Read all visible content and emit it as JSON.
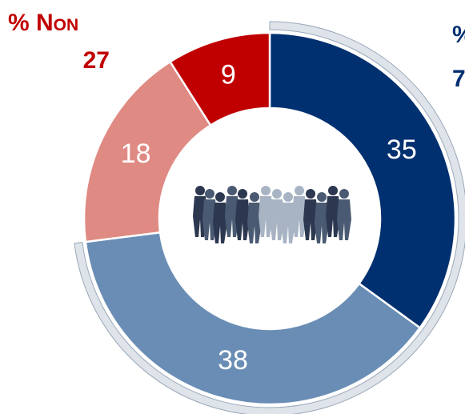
{
  "chart_data": {
    "type": "donut",
    "values": [
      35,
      38,
      18,
      9
    ],
    "colors": [
      "#003070",
      "#6a8db5",
      "#e08a84",
      "#c00000"
    ],
    "annotations": [
      {
        "label": "% Non",
        "value": 27,
        "color": "#c00000"
      },
      {
        "label": "%",
        "value": "7",
        "color": "#003070"
      }
    ]
  }
}
